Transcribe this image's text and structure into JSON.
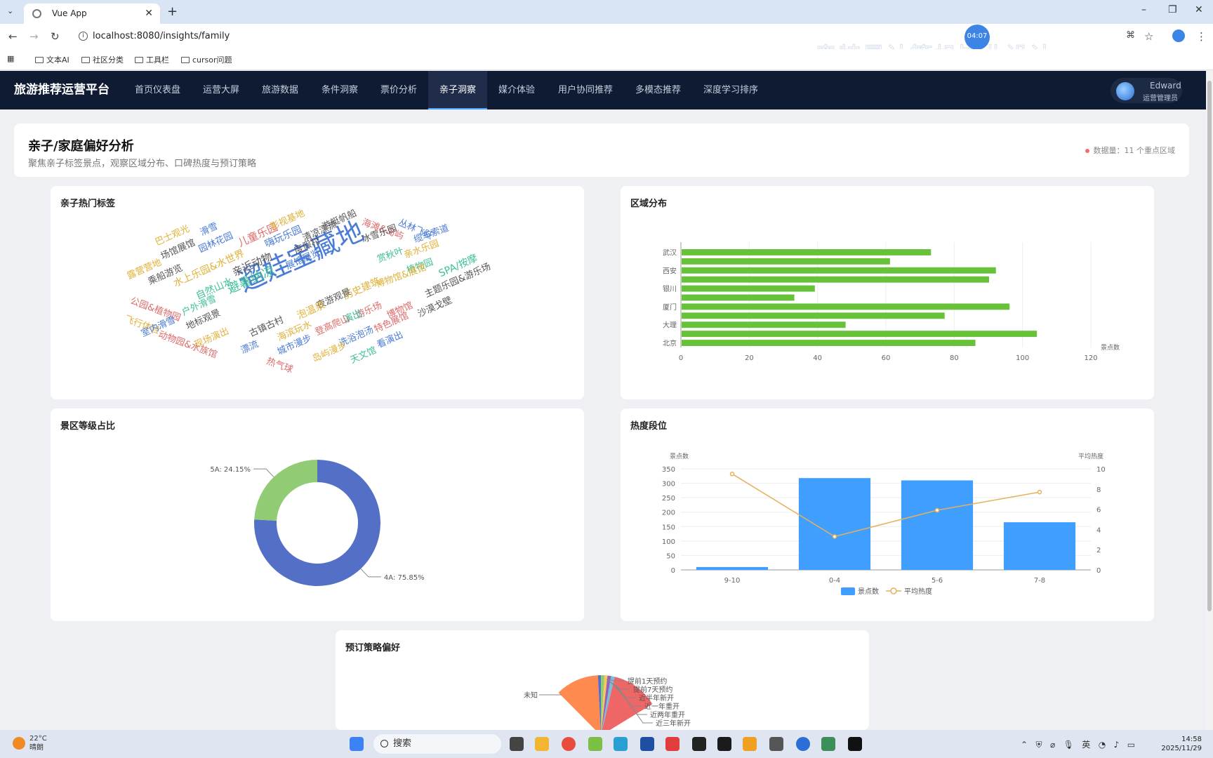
{
  "browser": {
    "tab_title": "Vue App",
    "url": "localhost:8080/insights/family",
    "timer": "04:07",
    "watermark": "奥特曼计算机毕业设计",
    "bookmarks": [
      "文本AI",
      "社区分类",
      "工具栏",
      "cursor问题"
    ]
  },
  "app": {
    "brand": "旅游推荐运营平台",
    "nav": [
      "首页仪表盘",
      "运营大屏",
      "旅游数据",
      "条件洞察",
      "票价分析",
      "亲子洞察",
      "媒介体验",
      "用户协同推荐",
      "多模态推荐",
      "深度学习排序"
    ],
    "active_nav": "亲子洞察",
    "user": {
      "name": "Edward",
      "role": "运营管理员"
    }
  },
  "header": {
    "title": "亲子/家庭偏好分析",
    "subtitle": "聚焦亲子标签景点，观察区域分布、口碑热度与预订策略",
    "meta": "数据量：11 个重点区域"
  },
  "cards": {
    "tags": {
      "title": "亲子热门标签"
    },
    "region": {
      "title": "区域分布"
    },
    "grade": {
      "title": "景区等级占比"
    },
    "heat": {
      "title": "热度段位"
    },
    "booking": {
      "title": "预订策略偏好"
    }
  },
  "wordcloud": {
    "words": [
      {
        "t": "遛娃宝藏地",
        "c": "#4a7bd6"
      },
      {
        "t": "避暑纳凉",
        "c": "#3fbf9a"
      },
      {
        "t": "亲近动物",
        "c": "#555555"
      },
      {
        "t": "儿童乐园",
        "c": "#e06a6a"
      },
      {
        "t": "嗨玩乐园",
        "c": "#4a7bd6"
      },
      {
        "t": "度假村",
        "c": "#555555"
      },
      {
        "t": "影视基地",
        "c": "#e0b23a"
      },
      {
        "t": "游艇帆船",
        "c": "#555555"
      },
      {
        "t": "海滩&岛屿",
        "c": "#e06a6a"
      },
      {
        "t": "丛林飞跃",
        "c": "#4a7bd6"
      },
      {
        "t": "冰雪乐园",
        "c": "#555555"
      },
      {
        "t": "缆车索道",
        "c": "#4a7bd6"
      },
      {
        "t": "亲水乐园",
        "c": "#e0b23a"
      },
      {
        "t": "赏秋叶",
        "c": "#3fbf9a"
      },
      {
        "t": "植物园",
        "c": "#3fbf9a"
      },
      {
        "t": "博物馆&展馆",
        "c": "#e0b23a"
      },
      {
        "t": "SPA/按摩",
        "c": "#3fbf9a"
      },
      {
        "t": "主题乐园&游乐场",
        "c": "#555555"
      },
      {
        "t": "巴士观光",
        "c": "#e0b23a"
      },
      {
        "t": "场馆展馆",
        "c": "#555555"
      },
      {
        "t": "滑雪",
        "c": "#4a7bd6"
      },
      {
        "t": "园林花园",
        "c": "#4a7bd6"
      },
      {
        "t": "展馆展览",
        "c": "#4a7bd6"
      },
      {
        "t": "清凉漂流",
        "c": "#555555"
      },
      {
        "t": "露营营地",
        "c": "#e0b23a"
      },
      {
        "t": "乘船游览",
        "c": "#555555"
      },
      {
        "t": "水上乐园&水世界",
        "c": "#e0b23a"
      },
      {
        "t": "自然山水",
        "c": "#3fbf9a"
      },
      {
        "t": "历史建筑",
        "c": "#e0b23a"
      },
      {
        "t": "公园&植物园",
        "c": "#e06a6a"
      },
      {
        "t": "户外滑雪",
        "c": "#3fbf9a"
      },
      {
        "t": "夜游观景",
        "c": "#555555"
      },
      {
        "t": "游乐场",
        "c": "#e06a6a"
      },
      {
        "t": "博物馆",
        "c": "#e06a6a"
      },
      {
        "t": "飞行体验",
        "c": "#e0b23a"
      },
      {
        "t": "地标观景",
        "c": "#555555"
      },
      {
        "t": "泡温泉",
        "c": "#e0b23a"
      },
      {
        "t": "演出",
        "c": "#3fbf9a"
      },
      {
        "t": "登高爬山",
        "c": "#e06a6a"
      },
      {
        "t": "特色展馆",
        "c": "#e06a6a"
      },
      {
        "t": "沙漠戈壁",
        "c": "#555555"
      },
      {
        "t": "室内滑雪",
        "c": "#4a7bd6"
      },
      {
        "t": "动物园&水族馆",
        "c": "#e06a6a"
      },
      {
        "t": "古镇古村",
        "c": "#555555"
      },
      {
        "t": "海滨玩水",
        "c": "#e0b23a"
      },
      {
        "t": "城市漫步",
        "c": "#4a7bd6"
      },
      {
        "t": "洗浴泡汤",
        "c": "#4a7bd6"
      },
      {
        "t": "看演出",
        "c": "#4a7bd6"
      },
      {
        "t": "现场演出",
        "c": "#e0b23a"
      },
      {
        "t": "漂流",
        "c": "#4a7bd6"
      },
      {
        "t": "热气球",
        "c": "#e06a6a"
      },
      {
        "t": "岛屿漫步",
        "c": "#e0b23a"
      },
      {
        "t": "天文馆",
        "c": "#3fbf9a"
      }
    ]
  },
  "chart_data": [
    {
      "type": "bar",
      "orientation": "horizontal",
      "name": "region",
      "categories": [
        "北京",
        "",
        "大理",
        "",
        "厦门",
        "",
        "银川",
        "",
        "西安",
        "",
        "武汉"
      ],
      "values": [
        86,
        104,
        48,
        77,
        96,
        33,
        39,
        90,
        92,
        61,
        73
      ],
      "xlim": [
        0,
        120
      ],
      "xticks": [
        0,
        20,
        40,
        60,
        80,
        100,
        120
      ],
      "xlabel": "景点数",
      "color": "#67c23a"
    },
    {
      "type": "pie",
      "name": "grade",
      "labels": [
        "4A",
        "5A"
      ],
      "values": [
        75.85,
        24.15
      ],
      "label_texts": [
        "4A: 75.85%",
        "5A: 24.15%"
      ],
      "colors": [
        "#5470c6",
        "#91cc75"
      ],
      "donut": true
    },
    {
      "type": "bar+line",
      "name": "heat",
      "categories": [
        "9-10",
        "0-4",
        "5-6",
        "7-8"
      ],
      "series": [
        {
          "name": "景点数",
          "type": "bar",
          "axis": "left",
          "values": [
            10,
            318,
            310,
            165
          ],
          "color": "#409eff"
        },
        {
          "name": "平均热度",
          "type": "line",
          "axis": "right",
          "values": [
            9.5,
            3.3,
            5.9,
            7.7
          ],
          "color": "#e6b05c"
        }
      ],
      "ylabel": "景点数",
      "y2label": "平均热度",
      "ylim": [
        0,
        350
      ],
      "yticks": [
        0,
        50,
        100,
        150,
        200,
        250,
        300,
        350
      ],
      "y2lim": [
        0,
        10
      ],
      "y2ticks": [
        0,
        2,
        4,
        6,
        8,
        10
      ],
      "legend": "bottom"
    },
    {
      "type": "pie",
      "name": "booking",
      "labels": [
        "未知",
        "提前1天预约",
        "提前7天预约",
        "近半年新开",
        "近一年重开",
        "近两年重开",
        "近三年新开"
      ],
      "colors": [
        "#ff8a50",
        "#5470c6",
        "#91cc75",
        "#fac858",
        "#9a60b4",
        "#73c0de",
        "#ee6666"
      ],
      "partial": true
    }
  ],
  "taskbar": {
    "weather": "22°C",
    "weather_desc": "晴朗",
    "search": "搜索",
    "time": "14:58",
    "date": "2025/11/29",
    "ime": "英"
  }
}
